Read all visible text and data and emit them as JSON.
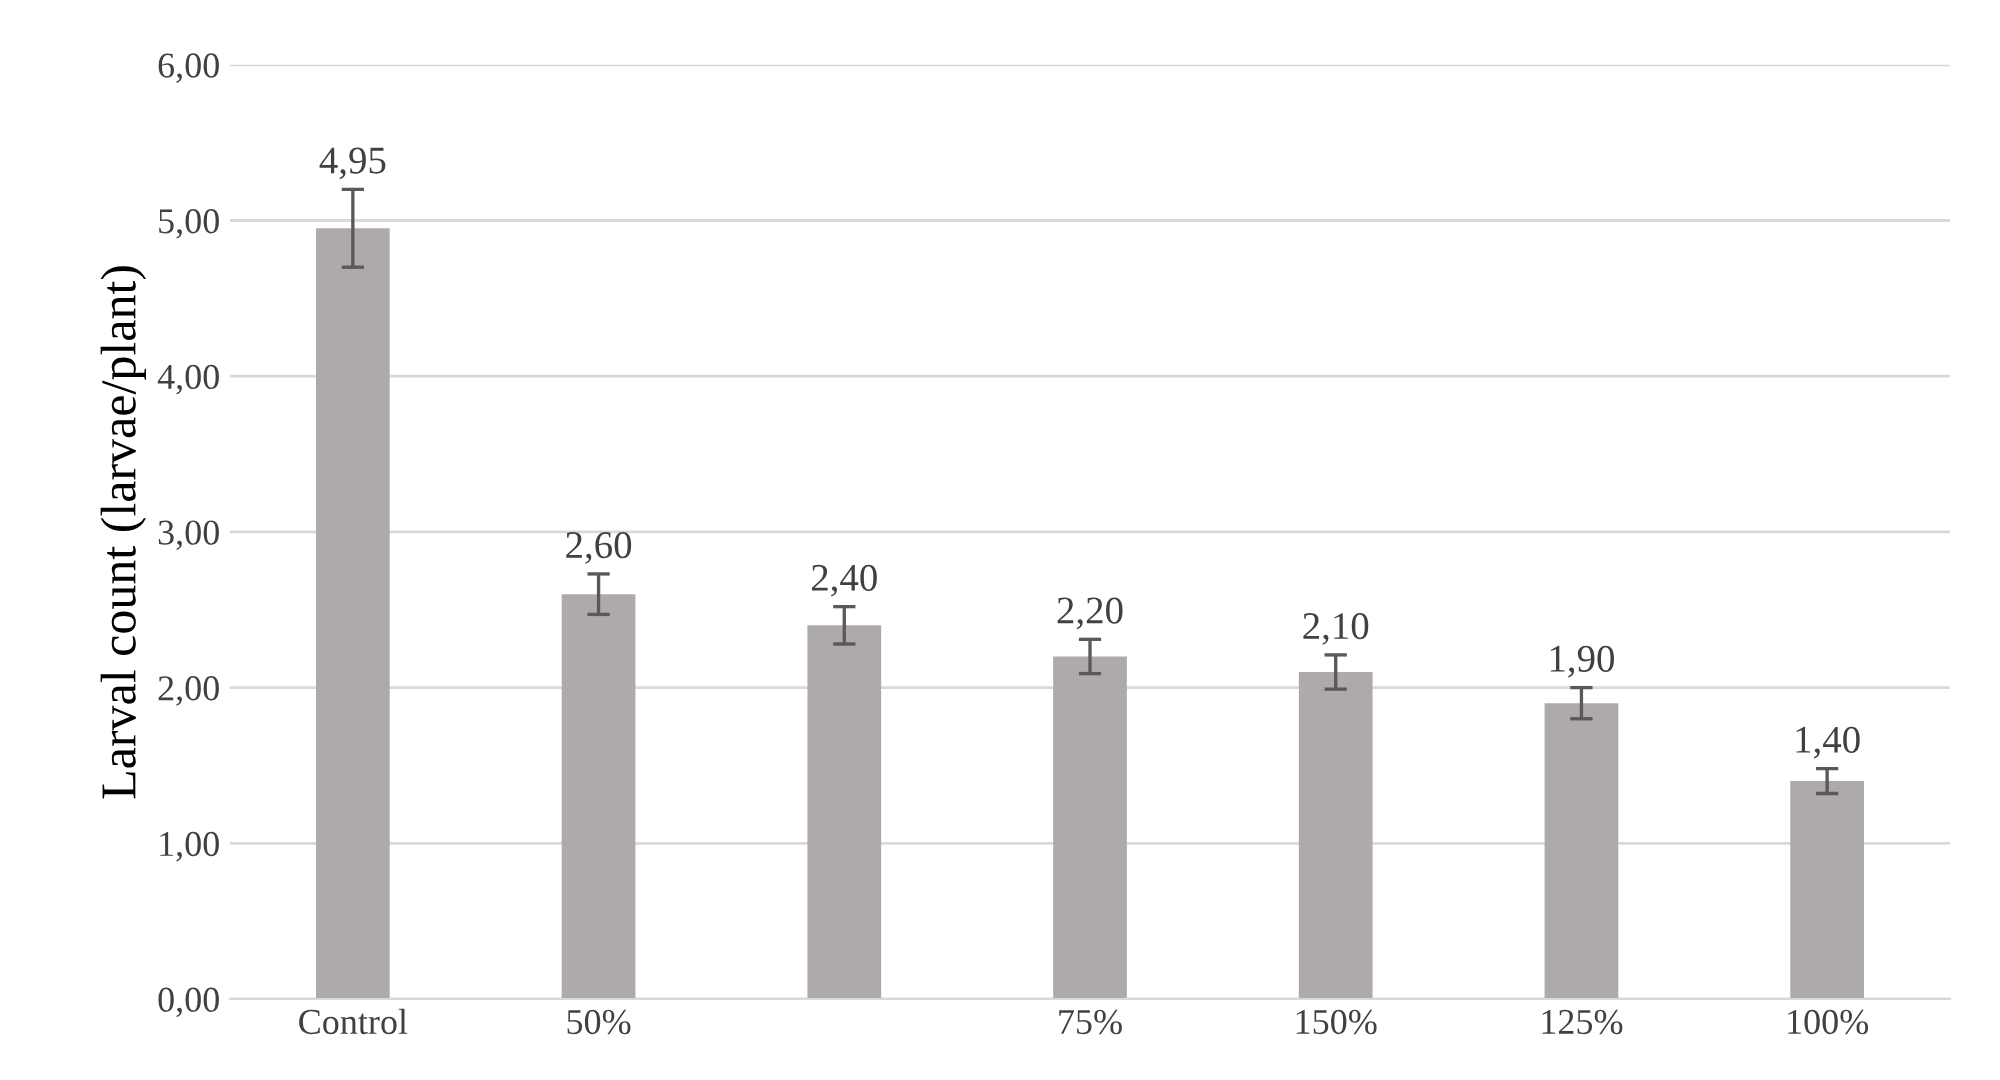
{
  "chart_data": {
    "type": "bar",
    "ylabel": "Larval count (larvae/plant)",
    "categories": [
      "Control",
      "50%",
      null,
      "75%",
      "150%",
      "125%",
      "100%"
    ],
    "values": [
      4.95,
      2.6,
      2.4,
      2.2,
      2.1,
      1.9,
      1.4
    ],
    "errors": [
      0.25,
      0.13,
      0.12,
      0.11,
      0.11,
      0.1,
      0.08
    ],
    "value_labels": [
      "4,95",
      "2,60",
      "2,40",
      "2,20",
      "2,10",
      "1,90",
      "1,40"
    ],
    "color": "#aeaaaa",
    "ylim": [
      0,
      6
    ],
    "yticks": [
      {
        "value": 0,
        "label": "0,00"
      },
      {
        "value": 1,
        "label": "1,00"
      },
      {
        "value": 2,
        "label": "2,00"
      },
      {
        "value": 3,
        "label": "3,00"
      },
      {
        "value": 4,
        "label": "4,00"
      },
      {
        "value": 5,
        "label": "5,00"
      },
      {
        "value": 6,
        "label": "6,00"
      }
    ],
    "grid": "y"
  }
}
